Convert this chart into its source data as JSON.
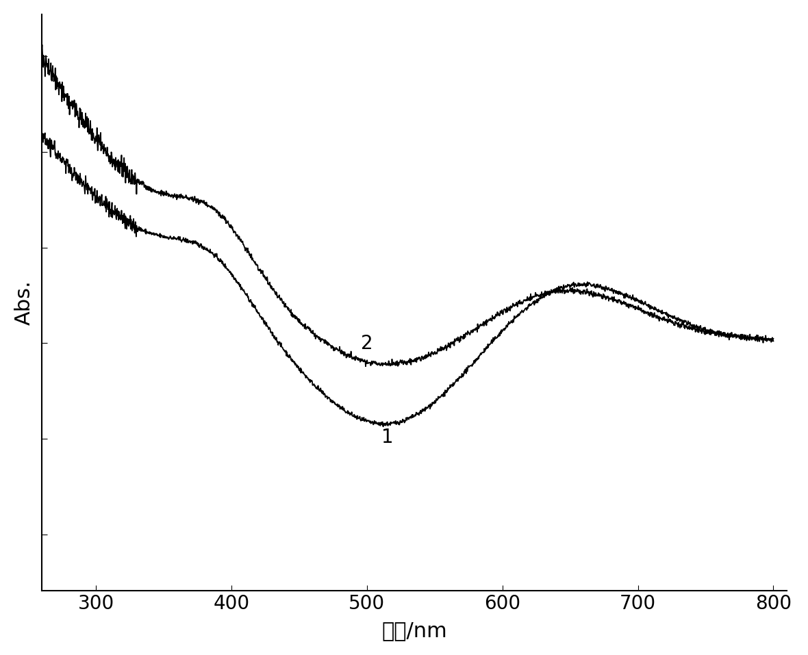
{
  "xlabel": "波长/nm",
  "ylabel": "Abs.",
  "xlim": [
    260,
    810
  ],
  "xticks": [
    300,
    400,
    500,
    600,
    700,
    800
  ],
  "background_color": "#ffffff",
  "line_color": "#000000",
  "label1": "1",
  "label2": "2",
  "fontsize_tick": 20,
  "fontsize_label": 22,
  "noise_seed1": 42,
  "noise_seed2": 99
}
